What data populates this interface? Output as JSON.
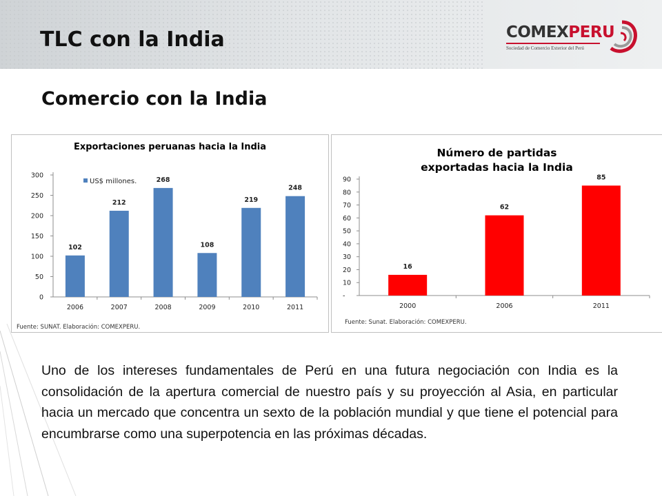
{
  "header": {
    "title": "TLC con la India",
    "logo": {
      "name_dark": "COMEX",
      "name_red": "PERU",
      "tagline": "Sociedad de Comercio Exterior del Perú",
      "accent_color": "#c8102e"
    }
  },
  "main": {
    "subtitle": "Comercio con la India",
    "paragraph": "Uno de los intereses fundamentales de Perú en una futura negociación con India es la consolidación de la apertura comercial de nuestro país y su proyección al Asia, en particular hacia un mercado que concentra un sexto de la población mundial y que tiene el potencial para encumbrarse como una superpotencia en las próximas décadas."
  },
  "chart_data": [
    {
      "type": "bar",
      "title": "Exportaciones peruanas hacia la India",
      "categories": [
        "2006",
        "2007",
        "2008",
        "2009",
        "2010",
        "2011"
      ],
      "series": [
        {
          "name": "US$ millones.",
          "values": [
            102,
            212,
            268,
            108,
            219,
            248
          ],
          "color": "#4f81bd"
        }
      ],
      "ylim": [
        0,
        300
      ],
      "yticks": [
        "0",
        "50",
        "100",
        "150",
        "200",
        "250",
        "300"
      ],
      "legend": "top-left",
      "grid": false,
      "source": "Fuente: SUNAT. Elaboración: COMEXPERU."
    },
    {
      "type": "bar",
      "title": "Número de partidas exportadas hacia la India",
      "categories": [
        "2000",
        "2006",
        "2011"
      ],
      "series": [
        {
          "values": [
            16,
            62,
            85
          ],
          "color": "#ff0000"
        }
      ],
      "ylim": [
        0,
        90
      ],
      "yticks": [
        "-",
        "10",
        "20",
        "30",
        "40",
        "50",
        "60",
        "70",
        "80",
        "90"
      ],
      "legend": "none",
      "grid": false,
      "source": "Fuente: Sunat. Elaboración: COMEXPERU."
    }
  ]
}
